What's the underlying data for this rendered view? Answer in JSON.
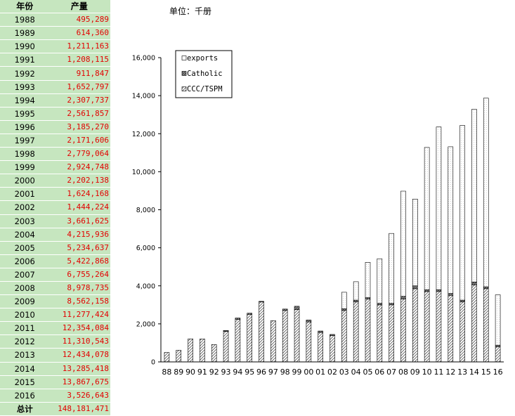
{
  "table": {
    "header_year": "年份",
    "header_output": "产量",
    "rows": [
      {
        "year": "1988",
        "output": "495,289"
      },
      {
        "year": "1989",
        "output": "614,360"
      },
      {
        "year": "1990",
        "output": "1,211,163"
      },
      {
        "year": "1991",
        "output": "1,208,115"
      },
      {
        "year": "1992",
        "output": "911,847"
      },
      {
        "year": "1993",
        "output": "1,652,797"
      },
      {
        "year": "1994",
        "output": "2,307,737"
      },
      {
        "year": "1995",
        "output": "2,561,857"
      },
      {
        "year": "1996",
        "output": "3,185,270"
      },
      {
        "year": "1997",
        "output": "2,171,606"
      },
      {
        "year": "1998",
        "output": "2,779,064"
      },
      {
        "year": "1999",
        "output": "2,924,748"
      },
      {
        "year": "2000",
        "output": "2,202,138"
      },
      {
        "year": "2001",
        "output": "1,624,168"
      },
      {
        "year": "2002",
        "output": "1,444,224"
      },
      {
        "year": "2003",
        "output": "3,661,625"
      },
      {
        "year": "2004",
        "output": "4,215,936"
      },
      {
        "year": "2005",
        "output": "5,234,637"
      },
      {
        "year": "2006",
        "output": "5,422,868"
      },
      {
        "year": "2007",
        "output": "6,755,264"
      },
      {
        "year": "2008",
        "output": "8,978,735"
      },
      {
        "year": "2009",
        "output": "8,562,158"
      },
      {
        "year": "2010",
        "output": "11,277,424"
      },
      {
        "year": "2011",
        "output": "12,354,084"
      },
      {
        "year": "2012",
        "output": "11,310,543"
      },
      {
        "year": "2013",
        "output": "12,434,078"
      },
      {
        "year": "2014",
        "output": "13,285,418"
      },
      {
        "year": "2015",
        "output": "13,867,675"
      },
      {
        "year": "2016",
        "output": "3,526,643"
      }
    ],
    "total_label": "总计",
    "total_value": "148,181,471"
  },
  "chart_data": {
    "type": "bar",
    "stacked": true,
    "unit_label": "单位：千册",
    "categories": [
      "88",
      "89",
      "90",
      "91",
      "92",
      "93",
      "94",
      "95",
      "96",
      "97",
      "98",
      "99",
      "00",
      "01",
      "02",
      "03",
      "04",
      "05",
      "06",
      "07",
      "08",
      "09",
      "10",
      "11",
      "12",
      "13",
      "14",
      "15",
      "16"
    ],
    "series": [
      {
        "name": "CCC/TSPM",
        "pattern": "hatch",
        "values": [
          495,
          614,
          1211,
          1208,
          912,
          1600,
          2230,
          2500,
          3150,
          2171,
          2700,
          2750,
          2100,
          1550,
          1380,
          2700,
          3150,
          3300,
          3000,
          3000,
          3300,
          3850,
          3700,
          3700,
          3500,
          3150,
          4050,
          3850,
          800
        ]
      },
      {
        "name": "Catholic",
        "pattern": "dark-hatch",
        "values": [
          0,
          0,
          0,
          0,
          0,
          50,
          78,
          62,
          35,
          0,
          79,
          175,
          102,
          74,
          64,
          100,
          100,
          80,
          80,
          80,
          150,
          150,
          100,
          100,
          100,
          100,
          150,
          100,
          80
        ]
      },
      {
        "name": "exports",
        "pattern": "dotted",
        "values": [
          0,
          0,
          0,
          0,
          0,
          3,
          0,
          0,
          0,
          0,
          0,
          0,
          0,
          0,
          0,
          862,
          966,
          1855,
          2343,
          3675,
          5529,
          4562,
          7477,
          8554,
          7711,
          9184,
          9085,
          9918,
          2647
        ]
      }
    ],
    "ylim": [
      0,
      16000
    ],
    "yticks": [
      0,
      2000,
      4000,
      6000,
      8000,
      10000,
      12000,
      14000,
      16000
    ],
    "ytick_labels": [
      "0",
      "2,000",
      "4,000",
      "6,000",
      "8,000",
      "10,000",
      "12,000",
      "14,000",
      "16,000"
    ],
    "legend_order": [
      "exports",
      "Catholic",
      "CCC/TSPM"
    ],
    "legend_position": "top-left",
    "grid": false
  }
}
